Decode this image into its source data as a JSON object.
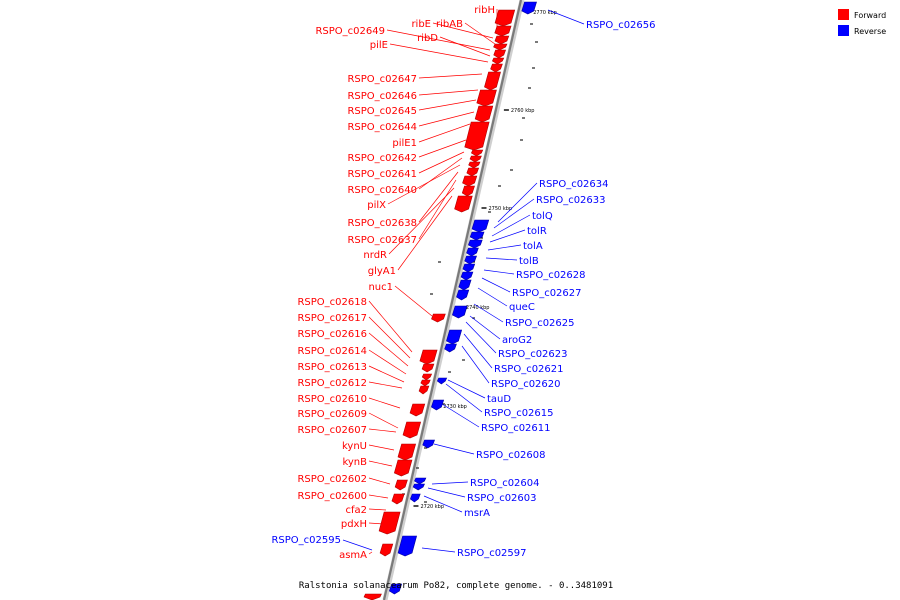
{
  "caption": "Ralstonia solanacearum Po82, complete genome. - 0..3481091",
  "legend": [
    {
      "label": "Forward",
      "color": "#ff0000"
    },
    {
      "label": "Reverse",
      "color": "#0000ff"
    }
  ],
  "strand_colors": {
    "forward": "#ff0000",
    "reverse": "#0000ff",
    "backbone": "#888888"
  },
  "ticks": [
    "2770 kbp",
    "2760 kbp",
    "2750 kbp",
    "2740 kbp",
    "2730 kbp",
    "2720 kbp"
  ],
  "forward_labels": [
    "ribH",
    "ribE",
    "ribAB",
    "RSPO_c02649",
    "ribD",
    "pilE",
    "RSPO_c02647",
    "RSPO_c02646",
    "RSPO_c02645",
    "RSPO_c02644",
    "pilE1",
    "RSPO_c02642",
    "RSPO_c02641",
    "RSPO_c02640",
    "pilX",
    "RSPO_c02638",
    "RSPO_c02637",
    "nrdR",
    "glyA1",
    "nuc1",
    "RSPO_c02618",
    "RSPO_c02617",
    "RSPO_c02616",
    "RSPO_c02614",
    "RSPO_c02613",
    "RSPO_c02612",
    "RSPO_c02610",
    "RSPO_c02609",
    "RSPO_c02607",
    "kynU",
    "kynB",
    "RSPO_c02602",
    "RSPO_c02600",
    "cfa2",
    "pdxH",
    "asmA"
  ],
  "reverse_labels": [
    "RSPO_c02656",
    "RSPO_c02634",
    "RSPO_c02633",
    "tolQ",
    "tolR",
    "tolA",
    "tolB",
    "RSPO_c02628",
    "RSPO_c02627",
    "queC",
    "RSPO_c02625",
    "aroG2",
    "RSPO_c02623",
    "RSPO_c02621",
    "RSPO_c02620",
    "tauD",
    "RSPO_c02615",
    "RSPO_c02611",
    "RSPO_c02608",
    "RSPO_c02604",
    "RSPO_c02603",
    "msrA",
    "RSPO_c02597",
    "RSPO_c02595"
  ]
}
